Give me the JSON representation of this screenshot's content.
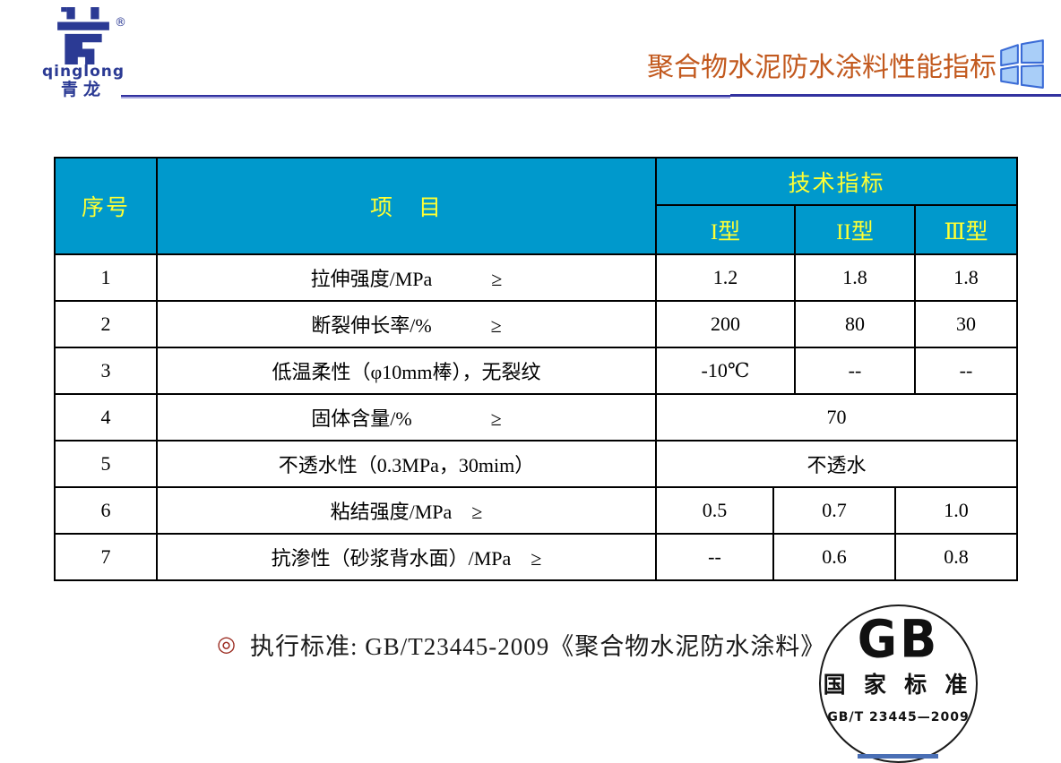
{
  "brand": {
    "registered_mark": "®",
    "name_en": "qinglong",
    "name_cn": "青龙"
  },
  "header": {
    "title": "聚合物水泥防水涂料性能指标"
  },
  "table": {
    "col_no": "序号",
    "col_item": "项　目",
    "col_tech": "技术指标",
    "types": [
      "I型",
      "II型",
      "Ⅲ型"
    ],
    "rows": [
      {
        "no": "1",
        "item": "拉伸强度/MPa　　　≥",
        "values": [
          "1.2",
          "1.8",
          "1.8"
        ],
        "alt": false
      },
      {
        "no": "2",
        "item": "断裂伸长率/%　　　≥",
        "values": [
          "200",
          "80",
          "30"
        ],
        "alt": false
      },
      {
        "no": "3",
        "item": "低温柔性（φ10mm棒），无裂纹",
        "values": [
          "-10℃",
          "--",
          "--"
        ],
        "alt": false
      },
      {
        "no": "4",
        "item": "固体含量/%　　　　≥",
        "values": [
          "70"
        ],
        "alt": false
      },
      {
        "no": "5",
        "item": "不透水性（0.3MPa，30mim）",
        "values": [
          "不透水"
        ],
        "alt": false
      },
      {
        "no": "6",
        "item": "粘结强度/MPa　≥",
        "values": [
          "0.5",
          "0.7",
          "1.0"
        ],
        "alt": true
      },
      {
        "no": "7",
        "item": "抗渗性（砂浆背水面）/MPa　≥",
        "values": [
          "--",
          "0.6",
          "0.8"
        ],
        "alt": true
      }
    ]
  },
  "footer": {
    "bullet": "◎",
    "standard_note": "执行标准: GB/T23445-2009《聚合物水泥防水涂料》"
  },
  "seal": {
    "letters": "GB",
    "title": "国 家 标 准",
    "code": "GB/T 23445—2009"
  },
  "colors": {
    "header_bg": "#0099CC",
    "header_text": "#FFFF33",
    "title_color": "#C2591E",
    "brand_navy": "#2B3A94",
    "line_dark": "#3232A0",
    "line_light": "#A9A9DF",
    "bullet_red": "#9B2B20",
    "seal_ribbon": "#4A6FB5",
    "win_fill": "#A9CEF8",
    "win_stroke": "#3A6BD6",
    "border_black": "#000000"
  }
}
